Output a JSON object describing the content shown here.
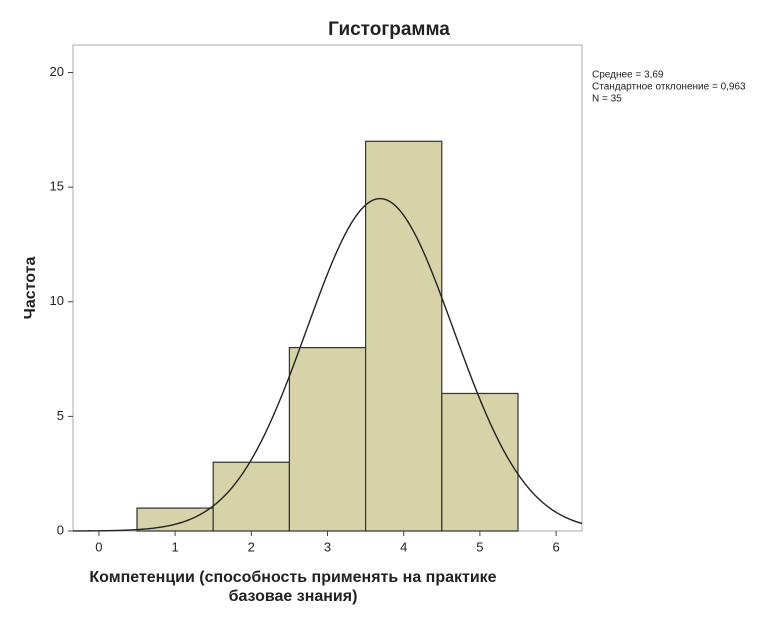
{
  "chart_data": {
    "type": "histogram",
    "title": "Гистограмма",
    "xlabel": [
      "Компетенции (способность применять на практике",
      "базовае знания)"
    ],
    "ylabel": "Частота",
    "bins": [
      0.5,
      1.5,
      2.5,
      3.5,
      4.5,
      5.5
    ],
    "values": [
      1,
      3,
      8,
      17,
      6
    ],
    "color": "#d6d3a8",
    "xlim": [
      -0.34,
      6.34
    ],
    "xticks": [
      0,
      1,
      2,
      3,
      4,
      5,
      6
    ],
    "ylim": [
      0,
      21.2
    ],
    "yticks": [
      0,
      5,
      10,
      15,
      20
    ],
    "stats": [
      {
        "value": 3.69,
        "label": "Среднее = 3,69"
      },
      {
        "value": 0.963,
        "label": "Стандартное отклонение = 0,963"
      },
      {
        "value": 35,
        "label": "N = 35"
      }
    ]
  }
}
